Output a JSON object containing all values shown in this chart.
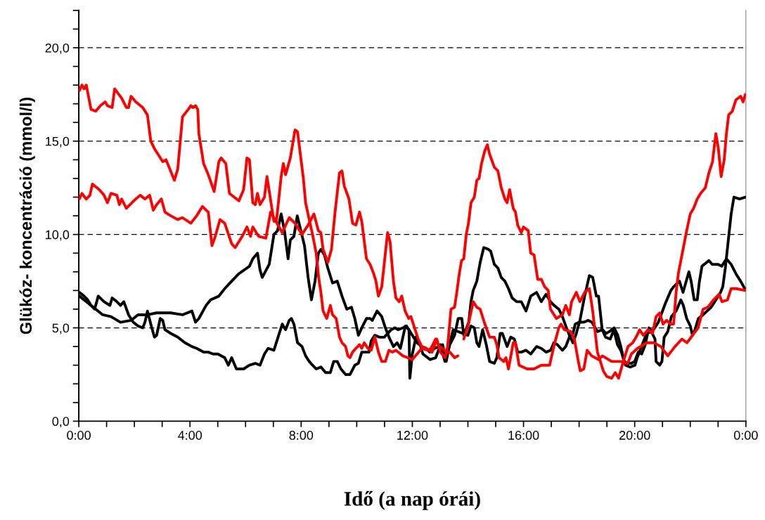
{
  "chart_data": {
    "type": "line",
    "xlabel": "Idő (a nap órái)",
    "ylabel": "Glükóz- koncentráció (mmol/l)",
    "xlim": [
      0,
      24
    ],
    "ylim": [
      0,
      22
    ],
    "xticks": [
      {
        "value": 0,
        "label": "0:00"
      },
      {
        "value": 1,
        "label": null
      },
      {
        "value": 2,
        "label": null
      },
      {
        "value": 3,
        "label": null
      },
      {
        "value": 4,
        "label": "4:00"
      },
      {
        "value": 5,
        "label": null
      },
      {
        "value": 6,
        "label": null
      },
      {
        "value": 7,
        "label": null
      },
      {
        "value": 8,
        "label": "8:00"
      },
      {
        "value": 9,
        "label": null
      },
      {
        "value": 10,
        "label": null
      },
      {
        "value": 11,
        "label": null
      },
      {
        "value": 12,
        "label": "12:00"
      },
      {
        "value": 13,
        "label": null
      },
      {
        "value": 14,
        "label": null
      },
      {
        "value": 15,
        "label": null
      },
      {
        "value": 16,
        "label": "16:00"
      },
      {
        "value": 17,
        "label": null
      },
      {
        "value": 18,
        "label": null
      },
      {
        "value": 19,
        "label": null
      },
      {
        "value": 20,
        "label": "20:00"
      },
      {
        "value": 21,
        "label": null
      },
      {
        "value": 22,
        "label": null
      },
      {
        "value": 23,
        "label": null
      },
      {
        "value": 24,
        "label": "0:00"
      }
    ],
    "yticks": [
      {
        "value": 0,
        "label": "0,0"
      },
      {
        "value": 1,
        "label": null
      },
      {
        "value": 2,
        "label": null
      },
      {
        "value": 3,
        "label": null
      },
      {
        "value": 4,
        "label": null
      },
      {
        "value": 5,
        "label": "5,0"
      },
      {
        "value": 6,
        "label": null
      },
      {
        "value": 7,
        "label": null
      },
      {
        "value": 8,
        "label": null
      },
      {
        "value": 9,
        "label": null
      },
      {
        "value": 10,
        "label": "10,0"
      },
      {
        "value": 11,
        "label": null
      },
      {
        "value": 12,
        "label": null
      },
      {
        "value": 13,
        "label": null
      },
      {
        "value": 14,
        "label": null
      },
      {
        "value": 15,
        "label": "15,0"
      },
      {
        "value": 16,
        "label": null
      },
      {
        "value": 17,
        "label": null
      },
      {
        "value": 18,
        "label": null
      },
      {
        "value": 19,
        "label": null
      },
      {
        "value": 20,
        "label": "20,0"
      },
      {
        "value": 21,
        "label": null
      },
      {
        "value": 22,
        "label": null
      }
    ],
    "grid": "y",
    "line_style": "solid",
    "marker": "none",
    "legend": false,
    "series": [
      {
        "color": "#000000",
        "x": [
          0.02,
          0.27,
          0.61,
          0.86,
          1.16,
          1.5,
          1.88,
          2.13,
          2.47,
          2.8,
          3.31,
          3.73,
          4.07,
          4.2,
          4.32,
          4.58,
          4.74,
          5.04,
          5.25,
          5.5,
          5.76,
          6.14,
          6.26,
          6.43,
          6.52,
          6.6,
          6.85,
          7.02,
          7.15,
          7.28,
          7.4,
          7.53,
          7.61,
          7.74,
          7.86,
          8.12,
          8.25,
          8.37,
          8.5,
          8.62,
          8.71,
          8.84,
          8.96,
          9.13,
          9.3,
          9.47,
          9.64,
          9.81,
          9.93,
          10.06,
          10.18,
          10.35,
          10.48,
          10.56,
          10.73,
          10.9,
          11.03,
          11.16,
          11.32,
          11.45,
          11.57,
          11.75,
          11.88,
          11.91,
          12.0,
          12.13,
          12.26,
          12.38,
          12.64,
          12.84,
          13.02,
          13.17,
          13.35,
          13.52,
          13.65,
          13.78,
          13.85,
          14.03,
          14.11,
          14.19,
          14.32,
          14.44,
          14.57,
          14.74,
          14.82,
          14.95,
          15.08,
          15.2,
          15.33,
          15.46,
          15.59,
          15.75,
          15.92,
          16.09,
          16.26,
          16.47,
          16.64,
          16.81,
          16.97,
          17.1,
          17.27,
          17.4,
          17.52,
          17.65,
          17.78,
          17.9,
          18.03,
          18.2,
          18.37,
          18.49,
          18.62,
          18.7,
          18.83,
          18.95,
          19.12,
          19.25,
          19.38,
          19.5,
          19.67,
          19.84,
          20.01,
          20.09,
          20.43,
          20.6,
          20.73,
          20.77,
          20.9,
          20.98,
          21.06,
          21.19,
          21.32,
          21.49,
          21.66,
          21.75,
          21.87,
          22.0,
          22.08,
          22.17,
          22.29,
          22.46,
          22.75,
          23.09,
          23.17,
          23.26,
          23.39,
          23.47,
          23.57,
          23.77,
          23.98
        ],
        "values": [
          6.7,
          6.4,
          6.0,
          5.7,
          5.6,
          5.3,
          5.4,
          5.7,
          5.7,
          5.8,
          5.8,
          5.7,
          5.9,
          5.3,
          5.5,
          6.2,
          6.5,
          6.7,
          7.1,
          7.5,
          7.9,
          8.3,
          8.7,
          9.0,
          8.1,
          7.7,
          8.4,
          10.0,
          10.2,
          11.1,
          10.2,
          8.7,
          9.7,
          9.9,
          11.0,
          9.4,
          7.7,
          6.5,
          7.5,
          9.0,
          9.2,
          8.9,
          8.2,
          7.4,
          7.5,
          6.7,
          6.0,
          6.1,
          5.5,
          4.6,
          5.0,
          5.5,
          5.5,
          5.4,
          5.9,
          5.6,
          5.0,
          4.5,
          4.0,
          4.2,
          3.9,
          5.1,
          4.9,
          2.3,
          3.6,
          4.5,
          4.2,
          3.6,
          3.3,
          3.4,
          4.1,
          3.2,
          4.1,
          4.6,
          5.5,
          5.5,
          4.6,
          5.3,
          6.4,
          7.0,
          7.5,
          8.5,
          9.3,
          9.2,
          9.1,
          8.4,
          8.2,
          7.7,
          7.5,
          7.1,
          6.6,
          6.4,
          6.4,
          5.9,
          6.7,
          6.9,
          6.4,
          6.8,
          6.4,
          6.2,
          6.0,
          5.6,
          5.1,
          4.6,
          4.2,
          4.7,
          5.4,
          6.7,
          7.8,
          7.7,
          6.7,
          6.7,
          4.9,
          4.5,
          4.4,
          4.9,
          4.1,
          3.8,
          3.0,
          2.9,
          3.0,
          3.4,
          4.7,
          4.8,
          4.4,
          3.2,
          3.0,
          3.2,
          4.5,
          4.8,
          5.6,
          5.9,
          6.5,
          6.2,
          5.5,
          5.1,
          4.6,
          4.9,
          5.5,
          5.7,
          6.1,
          6.9,
          7.2,
          8.2,
          10.0,
          11.1,
          12.0,
          11.9,
          12.0
        ]
      },
      {
        "color": "#000000",
        "x": [
          0.02,
          0.19,
          0.32,
          0.44,
          0.57,
          0.7,
          0.91,
          1.12,
          1.2,
          1.37,
          1.5,
          1.62,
          1.79,
          1.96,
          2.13,
          2.3,
          2.38,
          2.47,
          2.59,
          2.72,
          2.8,
          2.93,
          3.02,
          3.1,
          3.31,
          3.56,
          3.82,
          4.07,
          4.24,
          4.49,
          4.66,
          4.83,
          5.0,
          5.25,
          5.38,
          5.5,
          5.67,
          5.93,
          6.14,
          6.35,
          6.52,
          6.68,
          6.81,
          7.02,
          7.19,
          7.32,
          7.44,
          7.57,
          7.65,
          7.74,
          7.87,
          8.03,
          8.16,
          8.29,
          8.41,
          8.54,
          8.71,
          8.88,
          9.05,
          9.17,
          9.3,
          9.43,
          9.6,
          9.76,
          9.93,
          10.06,
          10.18,
          10.31,
          10.44,
          10.52,
          10.65,
          10.82,
          10.99,
          11.24,
          11.37,
          11.49,
          11.66,
          11.79,
          12.17,
          12.34,
          12.5,
          12.63,
          12.8,
          12.97,
          13.09,
          13.22,
          13.35,
          13.47,
          14.0,
          14.11,
          14.23,
          14.32,
          14.4,
          14.53,
          14.66,
          14.78,
          14.95,
          15.04,
          15.16,
          15.24,
          15.41,
          15.54,
          15.67,
          15.79,
          15.92,
          16.09,
          16.26,
          16.47,
          16.64,
          16.81,
          16.98,
          17.09,
          17.22,
          17.4,
          17.52,
          17.65,
          17.78,
          17.86,
          18.0,
          18.17,
          18.33,
          18.46,
          18.66,
          18.84,
          18.97,
          19.09,
          19.26,
          19.39,
          19.5,
          19.62,
          19.75,
          19.88,
          20.0,
          20.13,
          20.25,
          20.38,
          20.51,
          20.63,
          20.85,
          21.1,
          21.3,
          21.4,
          21.61,
          21.74,
          21.95,
          22.03,
          22.14,
          22.25,
          22.33,
          22.42,
          22.67,
          22.79,
          23.0,
          23.13,
          23.3,
          23.47,
          23.64,
          23.81,
          23.96
        ],
        "values": [
          6.9,
          6.7,
          6.5,
          6.2,
          6.0,
          6.7,
          6.4,
          6.2,
          6.6,
          6.4,
          6.2,
          6.4,
          5.7,
          5.3,
          5.1,
          5.0,
          5.3,
          5.9,
          5.2,
          4.5,
          4.6,
          5.5,
          5.4,
          4.9,
          4.7,
          4.5,
          4.2,
          4.0,
          3.9,
          3.7,
          3.7,
          3.6,
          3.6,
          3.4,
          3.0,
          3.4,
          2.8,
          2.8,
          3.0,
          3.1,
          3.0,
          3.6,
          3.9,
          3.8,
          4.6,
          5.2,
          4.9,
          5.4,
          5.5,
          5.2,
          4.2,
          4.0,
          3.5,
          3.2,
          3.0,
          2.8,
          2.9,
          2.6,
          2.6,
          3.2,
          3.2,
          2.8,
          2.5,
          2.5,
          3.0,
          3.1,
          3.7,
          3.7,
          3.7,
          4.3,
          4.6,
          4.5,
          4.5,
          4.9,
          5.0,
          4.9,
          5.0,
          5.1,
          4.2,
          4.0,
          3.9,
          3.7,
          3.9,
          4.0,
          4.1,
          3.2,
          4.2,
          4.9,
          4.6,
          5.1,
          5.0,
          4.2,
          4.0,
          4.9,
          4.1,
          3.2,
          3.1,
          3.4,
          4.7,
          4.7,
          4.0,
          4.5,
          4.4,
          3.7,
          3.7,
          3.8,
          3.6,
          4.0,
          3.9,
          3.7,
          3.8,
          4.2,
          4.1,
          3.8,
          4.0,
          4.5,
          4.7,
          5.2,
          5.3,
          5.3,
          5.4,
          5.3,
          4.8,
          4.9,
          4.7,
          4.8,
          5.0,
          4.6,
          4.0,
          3.2,
          3.1,
          3.1,
          3.2,
          3.7,
          3.6,
          4.1,
          5.0,
          4.8,
          5.3,
          6.3,
          7.0,
          7.2,
          7.5,
          6.9,
          8.0,
          7.5,
          6.5,
          6.5,
          7.5,
          8.3,
          8.6,
          8.4,
          8.4,
          8.3,
          8.7,
          8.4,
          7.9,
          7.5,
          7.1
        ]
      },
      {
        "color": "#ff0000",
        "x": [
          0.02,
          0.11,
          0.19,
          0.27,
          0.44,
          0.61,
          0.78,
          0.95,
          1.03,
          1.2,
          1.29,
          1.54,
          1.71,
          1.79,
          1.88,
          2.05,
          2.3,
          2.47,
          2.59,
          2.72,
          3.02,
          3.14,
          3.44,
          3.56,
          3.73,
          3.94,
          4.03,
          4.11,
          4.2,
          4.28,
          4.32,
          4.49,
          4.66,
          4.87,
          5.04,
          5.12,
          5.29,
          5.42,
          5.76,
          5.93,
          6.05,
          6.14,
          6.26,
          6.35,
          6.43,
          6.52,
          6.68,
          6.77,
          7.02,
          7.11,
          7.28,
          7.36,
          7.44,
          7.61,
          7.78,
          7.87,
          8.08,
          8.16,
          8.29,
          8.41,
          8.54,
          8.63,
          8.71,
          8.79,
          8.92,
          9.05,
          9.13,
          9.26,
          9.38,
          9.47,
          9.6,
          9.68,
          9.76,
          9.85,
          9.97,
          10.1,
          10.18,
          10.27,
          10.4,
          10.52,
          10.65,
          10.78,
          10.9,
          11.03,
          11.16,
          11.28,
          11.41,
          11.66,
          11.83,
          12.0,
          12.17,
          12.34,
          12.55,
          12.67,
          12.84,
          12.97,
          13.09,
          13.22,
          13.35,
          13.52,
          13.64,
          13.75,
          13.85,
          14.02,
          14.19,
          14.32,
          14.44,
          14.61,
          14.78,
          14.95,
          15.04,
          15.12,
          15.29,
          15.37,
          15.46,
          15.63,
          15.71,
          15.84,
          16.13,
          16.38,
          16.64,
          16.94,
          17.09,
          17.27,
          17.35,
          17.47,
          17.7,
          17.83,
          17.96,
          18.04,
          18.17,
          18.29,
          18.45,
          18.7,
          18.84,
          19.17,
          19.5,
          19.75,
          19.88,
          20.1,
          20.43,
          20.69,
          20.94,
          21.19,
          21.45,
          21.7,
          21.88,
          22.13,
          22.28,
          22.46,
          22.63,
          22.84,
          23.04,
          23.14,
          23.34,
          23.47,
          23.65,
          23.98
        ],
        "values": [
          17.7,
          18.0,
          17.8,
          18.0,
          16.7,
          16.6,
          16.9,
          17.1,
          16.9,
          16.8,
          17.8,
          17.3,
          16.8,
          16.8,
          17.4,
          17.1,
          16.8,
          16.4,
          15.0,
          14.6,
          13.9,
          14.0,
          12.9,
          13.5,
          16.3,
          16.7,
          16.9,
          16.8,
          16.9,
          16.7,
          15.4,
          13.8,
          13.2,
          12.3,
          13.9,
          14.1,
          13.8,
          12.2,
          11.8,
          12.4,
          14.1,
          14.0,
          11.7,
          11.6,
          12.2,
          11.6,
          12.0,
          13.1,
          10.7,
          10.7,
          13.1,
          13.8,
          13.2,
          14.1,
          15.6,
          15.5,
          13.0,
          11.7,
          10.8,
          10.0,
          9.0,
          7.7,
          6.9,
          5.9,
          5.5,
          6.2,
          5.7,
          5.5,
          4.5,
          4.2,
          4.0,
          3.5,
          3.4,
          3.7,
          3.9,
          4.1,
          3.9,
          4.2,
          3.9,
          3.8,
          4.5,
          3.7,
          3.2,
          3.2,
          3.8,
          3.7,
          3.8,
          3.5,
          3.4,
          3.3,
          3.6,
          3.9,
          3.8,
          3.9,
          4.4,
          4.0,
          3.9,
          3.7,
          3.7,
          3.4,
          3.5,
          null,
          4.4,
          5.2,
          6.4,
          6.1,
          6.0,
          5.2,
          4.5,
          4.5,
          4.1,
          3.4,
          3.2,
          3.4,
          2.8,
          4.2,
          4.2,
          3.0,
          2.8,
          2.8,
          3.0,
          3.0,
          4.0,
          5.0,
          5.2,
          4.9,
          4.8,
          4.4,
          3.3,
          2.7,
          2.8,
          3.8,
          3.5,
          3.3,
          3.5,
          3.2,
          3.2,
          3.1,
          3.6,
          3.9,
          4.2,
          4.2,
          4.0,
          3.5,
          4.0,
          4.4,
          4.2,
          4.7,
          5.0,
          6.0,
          6.1,
          6.5,
          6.8,
          6.4,
          6.5,
          7.1,
          7.1,
          7.0
        ]
      },
      {
        "color": "#ff0000",
        "x": [
          0.02,
          0.11,
          0.27,
          0.4,
          0.49,
          0.74,
          0.91,
          1.03,
          1.16,
          1.37,
          1.46,
          1.54,
          1.71,
          2.05,
          2.21,
          2.38,
          2.55,
          2.68,
          2.8,
          2.97,
          3.1,
          3.31,
          3.56,
          3.73,
          4.03,
          4.24,
          4.45,
          4.66,
          4.79,
          4.91,
          5.08,
          5.25,
          5.5,
          5.63,
          5.88,
          6.05,
          6.18,
          6.26,
          6.47,
          6.73,
          6.9,
          7.32,
          7.57,
          7.78,
          8.03,
          8.25,
          8.46,
          8.62,
          8.71,
          8.79,
          8.96,
          9.09,
          9.22,
          9.38,
          9.47,
          9.55,
          9.72,
          9.85,
          9.97,
          10.1,
          10.18,
          10.35,
          10.48,
          10.61,
          10.69,
          10.78,
          10.9,
          11.03,
          11.11,
          11.2,
          11.32,
          11.41,
          11.53,
          11.62,
          11.74,
          11.87,
          11.95,
          12.08,
          12.21,
          12.34,
          12.5,
          12.71,
          12.88,
          13.01,
          13.18,
          13.27,
          13.39,
          13.52,
          13.6,
          13.69,
          13.77,
          13.85,
          13.94,
          14.02,
          14.11,
          14.23,
          14.32,
          14.4,
          14.49,
          14.61,
          14.7,
          14.78,
          14.95,
          15.08,
          15.2,
          15.33,
          15.41,
          15.5,
          15.63,
          15.71,
          15.79,
          15.92,
          16.0,
          16.17,
          16.26,
          16.38,
          16.51,
          16.64,
          16.76,
          16.89,
          16.97,
          17.1,
          17.18,
          17.4,
          17.52,
          17.65,
          17.73,
          17.9,
          18.03,
          18.2,
          18.37,
          18.49,
          18.66,
          18.87,
          18.99,
          19.17,
          19.3,
          19.42,
          19.59,
          19.76,
          19.93,
          20.05,
          20.18,
          20.31,
          20.48,
          20.64,
          20.77,
          20.9,
          21.02,
          21.15,
          21.28,
          21.4,
          21.49,
          21.57,
          21.7,
          21.87,
          22.0,
          22.12,
          22.25,
          22.37,
          22.54,
          22.67,
          22.8,
          22.92,
          23.01,
          23.11,
          23.22,
          23.3,
          23.38,
          23.51,
          23.64,
          23.81,
          23.9,
          23.98
        ],
        "values": [
          11.9,
          12.2,
          11.9,
          12.1,
          12.7,
          12.4,
          12.1,
          11.7,
          12.2,
          12.1,
          11.6,
          11.9,
          11.4,
          11.9,
          12.1,
          11.9,
          12.1,
          11.3,
          11.6,
          11.9,
          11.2,
          11.0,
          10.8,
          10.9,
          10.6,
          11.0,
          11.5,
          11.2,
          9.4,
          9.9,
          10.8,
          10.6,
          9.5,
          9.3,
          9.9,
          10.4,
          9.9,
          10.4,
          9.9,
          9.8,
          11.2,
          10.1,
          10.9,
          10.6,
          10.0,
          10.5,
          11.1,
          10.2,
          10.1,
          9.2,
          8.5,
          9.2,
          11.2,
          13.3,
          13.4,
          12.6,
          11.9,
          10.6,
          10.5,
          11.2,
          10.7,
          8.7,
          8.4,
          7.9,
          7.5,
          6.7,
          7.2,
          9.0,
          10.1,
          9.6,
          7.5,
          6.6,
          6.4,
          6.7,
          5.9,
          5.5,
          5.6,
          5.0,
          4.4,
          4.0,
          3.9,
          3.7,
          4.4,
          3.7,
          3.4,
          4.0,
          6.0,
          6.1,
          6.9,
          7.9,
          8.6,
          8.7,
          10.0,
          10.6,
          11.7,
          12.0,
          12.9,
          13.0,
          13.8,
          14.5,
          14.8,
          14.3,
          13.6,
          13.4,
          12.5,
          11.9,
          11.7,
          12.4,
          11.4,
          11.2,
          10.5,
          10.1,
          10.4,
          10.2,
          9.0,
          8.9,
          7.6,
          7.6,
          7.2,
          7.0,
          6.0,
          5.7,
          5.5,
          5.7,
          6.2,
          5.7,
          6.4,
          6.9,
          6.4,
          6.9,
          7.1,
          5.9,
          3.7,
          2.7,
          2.4,
          2.3,
          2.6,
          2.3,
          3.2,
          4.0,
          4.2,
          4.5,
          4.9,
          4.6,
          4.9,
          4.7,
          5.6,
          5.8,
          5.2,
          5.4,
          5.2,
          5.2,
          6.9,
          7.9,
          8.9,
          10.2,
          11.1,
          11.4,
          11.9,
          12.2,
          12.5,
          13.3,
          13.9,
          15.4,
          14.6,
          13.1,
          14.0,
          15.4,
          16.4,
          16.6,
          17.2,
          17.4,
          17.1,
          17.5
        ]
      }
    ]
  }
}
